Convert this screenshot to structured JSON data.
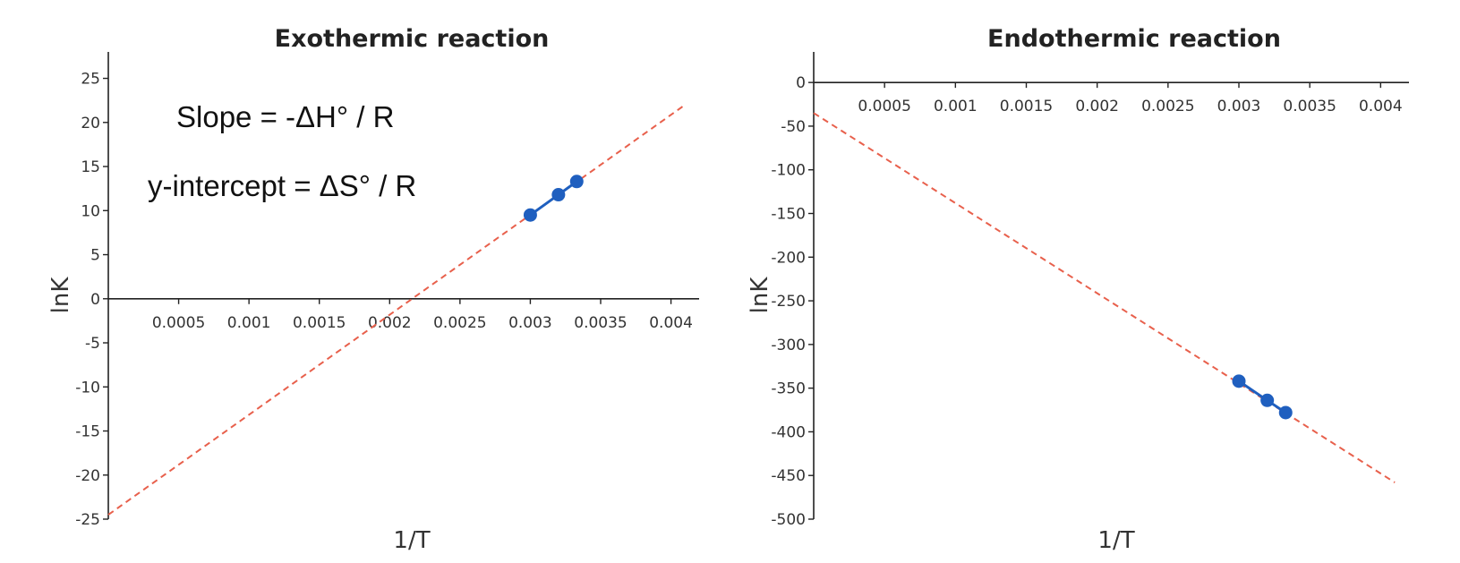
{
  "chart_data": [
    {
      "type": "line",
      "title": "Exothermic reaction",
      "xlabel": "1/T",
      "ylabel": "lnK",
      "xlim": [
        0,
        0.0042
      ],
      "ylim": [
        -25,
        28
      ],
      "x_ticks": [
        0.0005,
        0.001,
        0.0015,
        0.002,
        0.0025,
        0.003,
        0.0035,
        0.004
      ],
      "x_tick_labels": [
        "0.0005",
        "0.001",
        "0.0015",
        "0.002",
        "0.0025",
        "0.003",
        "0.0035",
        "0.004"
      ],
      "y_ticks": [
        -25,
        -20,
        -15,
        -10,
        -5,
        0,
        5,
        10,
        15,
        20,
        25
      ],
      "y_tick_labels": [
        "-25",
        "-20",
        "-15",
        "-10",
        "-5",
        "0",
        "5",
        "10",
        "15",
        "20",
        "25"
      ],
      "series": [
        {
          "x": [
            0.003,
            0.0032,
            0.00333
          ],
          "y": [
            9.5,
            11.8,
            13.3
          ],
          "color": "#1f5fbf"
        }
      ],
      "fit_line": {
        "x": [
          0,
          0.0041
        ],
        "y": [
          -24.5,
          22
        ],
        "color": "#e8604c"
      },
      "annotations": [
        "Slope = -ΔH° / R",
        "y-intercept = ΔS° / R"
      ],
      "grid": false,
      "legend": "none"
    },
    {
      "type": "line",
      "title": "Endothermic reaction",
      "xlabel": "1/T",
      "ylabel": "lnK",
      "xlim": [
        0,
        0.0042
      ],
      "ylim": [
        -500,
        35
      ],
      "x_ticks": [
        0.0005,
        0.001,
        0.0015,
        0.002,
        0.0025,
        0.003,
        0.0035,
        0.004
      ],
      "x_tick_labels": [
        "0.0005",
        "0.001",
        "0.0015",
        "0.002",
        "0.0025",
        "0.003",
        "0.0035",
        "0.004"
      ],
      "y_ticks": [
        0,
        -50,
        -100,
        -150,
        -200,
        -250,
        -300,
        -350,
        -400,
        -450,
        -500
      ],
      "y_tick_labels": [
        "0",
        "-50",
        "-100",
        "-150",
        "-200",
        "-250",
        "-300",
        "-350",
        "-400",
        "-450",
        "-500"
      ],
      "series": [
        {
          "x": [
            0.003,
            0.0032,
            0.00333
          ],
          "y": [
            -342,
            -364,
            -378
          ],
          "color": "#1f5fbf"
        }
      ],
      "fit_line": {
        "x": [
          0,
          0.0041
        ],
        "y": [
          -35,
          -458
        ],
        "color": "#e8604c"
      },
      "annotations": [],
      "grid": false,
      "legend": "none"
    }
  ]
}
